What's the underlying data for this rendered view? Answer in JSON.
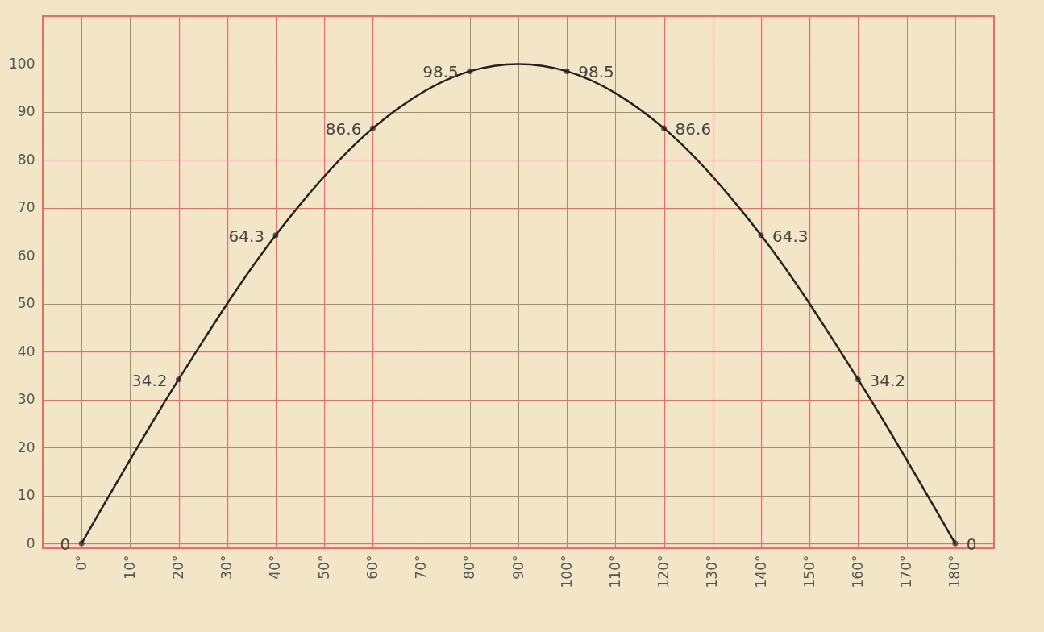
{
  "chart_data": {
    "type": "line",
    "xlim": [
      -8,
      188
    ],
    "ylim": [
      -1,
      110
    ],
    "xticks": [
      {
        "value": 0,
        "label": "0°"
      },
      {
        "value": 10,
        "label": "10°"
      },
      {
        "value": 20,
        "label": "20°"
      },
      {
        "value": 30,
        "label": "30°"
      },
      {
        "value": 40,
        "label": "40°"
      },
      {
        "value": 50,
        "label": "50°"
      },
      {
        "value": 60,
        "label": "60°"
      },
      {
        "value": 70,
        "label": "70°"
      },
      {
        "value": 80,
        "label": "80°"
      },
      {
        "value": 90,
        "label": "90°"
      },
      {
        "value": 100,
        "label": "100°"
      },
      {
        "value": 110,
        "label": "110°"
      },
      {
        "value": 120,
        "label": "120°"
      },
      {
        "value": 130,
        "label": "130°"
      },
      {
        "value": 140,
        "label": "140°"
      },
      {
        "value": 150,
        "label": "150°"
      },
      {
        "value": 160,
        "label": "160°"
      },
      {
        "value": 170,
        "label": "170°"
      },
      {
        "value": 180,
        "label": "180°"
      }
    ],
    "yticks": [
      0,
      10,
      20,
      30,
      40,
      50,
      60,
      70,
      80,
      90,
      100
    ],
    "grid": true,
    "series": [
      {
        "type": "line",
        "color": "#222222",
        "marker": "none",
        "x": [
          0,
          20,
          40,
          60,
          80,
          90,
          100,
          120,
          140,
          160,
          180
        ],
        "values": [
          0,
          34.2,
          64.3,
          86.6,
          98.5,
          100,
          98.5,
          86.6,
          64.3,
          34.2,
          0
        ]
      },
      {
        "type": "scatter",
        "color": "#222222",
        "marker": "circle",
        "x": [
          0,
          20,
          40,
          60,
          80,
          100,
          120,
          140,
          160,
          180
        ],
        "values": [
          0,
          34.2,
          64.3,
          86.6,
          98.5,
          98.5,
          86.6,
          64.3,
          34.2,
          0
        ],
        "value_labels": [
          "0",
          "34.2",
          "64.3",
          "86.6",
          "98.5",
          "98.5",
          "86.6",
          "64.3",
          "34.2",
          "0"
        ]
      }
    ]
  }
}
